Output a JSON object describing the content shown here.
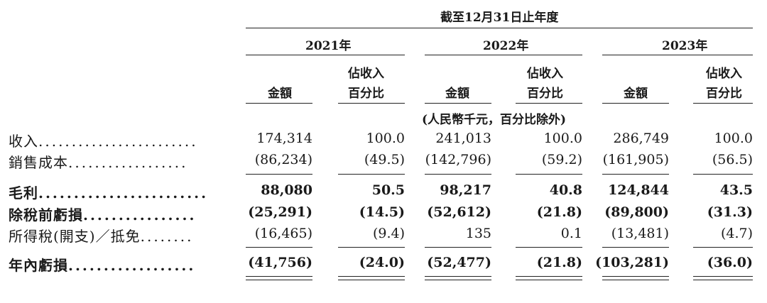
{
  "period_header": "截至12月31日止年度",
  "years": [
    "2021年",
    "2022年",
    "2023年"
  ],
  "col_amount": "金額",
  "col_pct_line1": "佔收入",
  "col_pct_line2": "百分比",
  "unit_note": "(人民幣千元，百分比除外)",
  "rows": [
    {
      "label": "收入",
      "dots": "........................",
      "values": [
        "174,314",
        "100.0",
        "241,013",
        "100.0",
        "286,749",
        "100.0"
      ]
    },
    {
      "label": "銷售成本",
      "dots": "..................",
      "values": [
        "(86,234)",
        "(49.5)",
        "(142,796)",
        "(59.2)",
        "(161,905)",
        "(56.5)"
      ]
    },
    {
      "label": "毛利",
      "dots": "........................",
      "values": [
        "88,080",
        "50.5",
        "98,217",
        "40.8",
        "124,844",
        "43.5"
      ]
    },
    {
      "label": "除稅前虧損",
      "dots": "................",
      "values": [
        "(25,291)",
        "(14.5)",
        "(52,612)",
        "(21.8)",
        "(89,800)",
        "(31.3)"
      ]
    },
    {
      "label": "所得稅(開支)／抵免",
      "dots": "........",
      "values": [
        "(16,465)",
        "(9.4)",
        "135",
        "0.1",
        "(13,481)",
        "(4.7)"
      ]
    },
    {
      "label": "年內虧損",
      "dots": "..................",
      "values": [
        "(41,756)",
        "(24.0)",
        "(52,477)",
        "(21.8)",
        "(103,281)",
        "(36.0)"
      ]
    }
  ]
}
